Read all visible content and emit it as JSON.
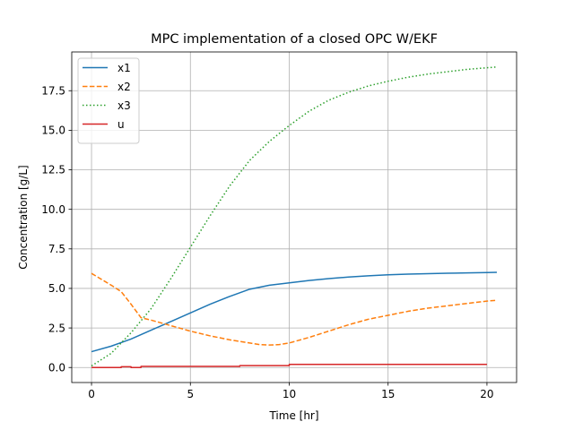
{
  "chart_data": {
    "type": "line",
    "title": "MPC implementation of a closed OPC W/EKF",
    "xlabel": "Time [hr]",
    "ylabel": "Concentration [g/L]",
    "xlim": [
      -1.0,
      21.5
    ],
    "ylim": [
      -0.95,
      19.95
    ],
    "xticks": [
      0,
      5,
      10,
      15,
      20
    ],
    "xtick_labels": [
      "0",
      "5",
      "10",
      "15",
      "20"
    ],
    "yticks": [
      0.0,
      2.5,
      5.0,
      7.5,
      10.0,
      12.5,
      15.0,
      17.5
    ],
    "ytick_labels": [
      "0.0",
      "2.5",
      "5.0",
      "7.5",
      "10.0",
      "12.5",
      "15.0",
      "17.5"
    ],
    "grid": true,
    "legend_position": "top-left",
    "series": [
      {
        "name": "x1",
        "color": "#1f77b4",
        "style": "solid",
        "x": [
          0,
          1,
          2,
          3,
          4,
          5,
          6,
          7,
          8,
          9,
          10,
          11,
          12,
          13,
          14,
          15,
          16,
          17,
          18,
          19,
          20,
          20.5
        ],
        "y": [
          1.0,
          1.35,
          1.8,
          2.35,
          2.9,
          3.45,
          4.0,
          4.5,
          4.95,
          5.2,
          5.35,
          5.5,
          5.62,
          5.72,
          5.8,
          5.86,
          5.9,
          5.93,
          5.96,
          5.98,
          6.0,
          6.02
        ]
      },
      {
        "name": "x2",
        "color": "#ff7f0e",
        "style": "dashed",
        "x": [
          0,
          1,
          1.5,
          2,
          2.5,
          3,
          4,
          5,
          6,
          7,
          8,
          8.5,
          9,
          9.5,
          10,
          11,
          12,
          13,
          14,
          15,
          16,
          17,
          18,
          19,
          20,
          20.5
        ],
        "y": [
          5.95,
          5.2,
          4.8,
          4.0,
          3.15,
          3.0,
          2.65,
          2.3,
          2.0,
          1.75,
          1.55,
          1.45,
          1.42,
          1.45,
          1.55,
          1.9,
          2.3,
          2.7,
          3.05,
          3.3,
          3.55,
          3.75,
          3.9,
          4.05,
          4.2,
          4.25
        ]
      },
      {
        "name": "x3",
        "color": "#2ca02c",
        "style": "dotted",
        "x": [
          0,
          1,
          2,
          3,
          4,
          5,
          6,
          7,
          8,
          9,
          10,
          11,
          12,
          13,
          14,
          15,
          16,
          17,
          18,
          19,
          20,
          20.5
        ],
        "y": [
          0.1,
          0.9,
          2.2,
          3.7,
          5.6,
          7.6,
          9.6,
          11.5,
          13.1,
          14.3,
          15.3,
          16.2,
          16.9,
          17.4,
          17.8,
          18.1,
          18.35,
          18.55,
          18.7,
          18.85,
          18.95,
          19.0
        ]
      },
      {
        "name": "u",
        "color": "#d62728",
        "style": "solid",
        "x": [
          0,
          1.5,
          1.5,
          2.0,
          2.0,
          2.5,
          2.5,
          7.5,
          7.5,
          10.0,
          10.0,
          20.0
        ],
        "y": [
          0.0,
          0.0,
          0.05,
          0.05,
          0.0,
          0.0,
          0.07,
          0.07,
          0.12,
          0.12,
          0.2,
          0.2
        ]
      }
    ]
  }
}
